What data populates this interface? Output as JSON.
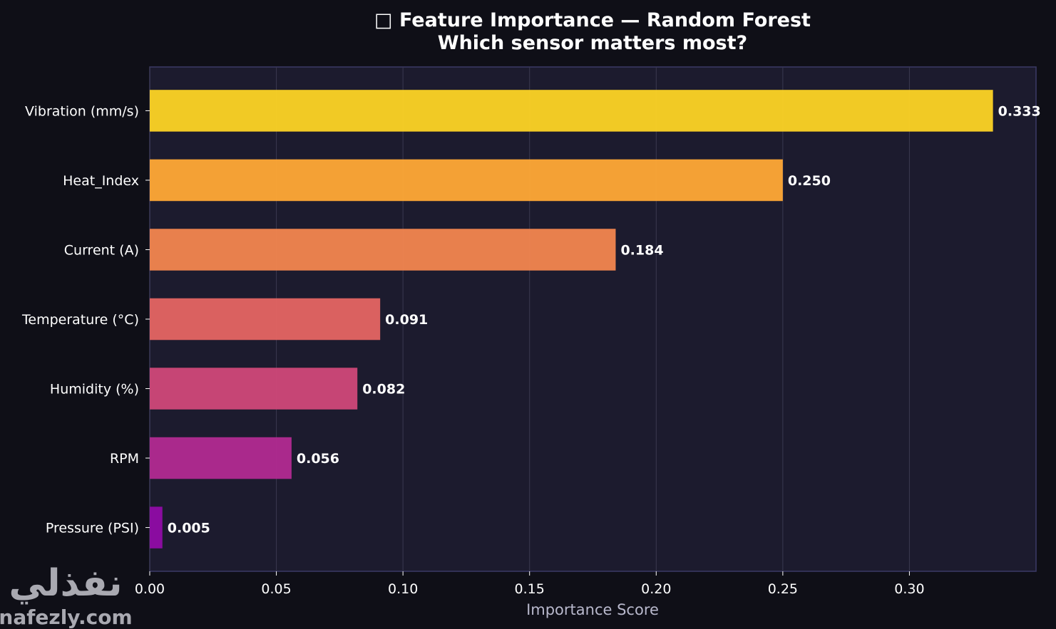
{
  "chart_data": {
    "type": "bar",
    "orientation": "horizontal",
    "title": "□ Feature Importance — Random Forest",
    "subtitle": "Which sensor matters most?",
    "xlabel": "Importance Score",
    "ylabel": "",
    "categories": [
      "Vibration (mm/s)",
      "Heat_Index",
      "Current (A)",
      "Temperature (°C)",
      "Humidity (%)",
      "RPM",
      "Pressure (PSI)"
    ],
    "values": [
      0.333,
      0.25,
      0.184,
      0.091,
      0.082,
      0.056,
      0.005
    ],
    "value_labels": [
      "0.333",
      "0.250",
      "0.184",
      "0.091",
      "0.082",
      "0.056",
      "0.005"
    ],
    "bar_colors": [
      "#f9d125",
      "#fca636",
      "#f0844e",
      "#e16462",
      "#cc4778",
      "#b02a8f",
      "#8e0ca4"
    ],
    "xlim": [
      0,
      0.35
    ],
    "xticks": [
      "0.00",
      "0.05",
      "0.10",
      "0.15",
      "0.20",
      "0.25",
      "0.30"
    ],
    "grid": "vertical",
    "background": "#0f0f17",
    "plot_background": "#1c1b2e"
  },
  "watermark": {
    "arabic": "نفذلي",
    "latin": "nafezly.com"
  }
}
